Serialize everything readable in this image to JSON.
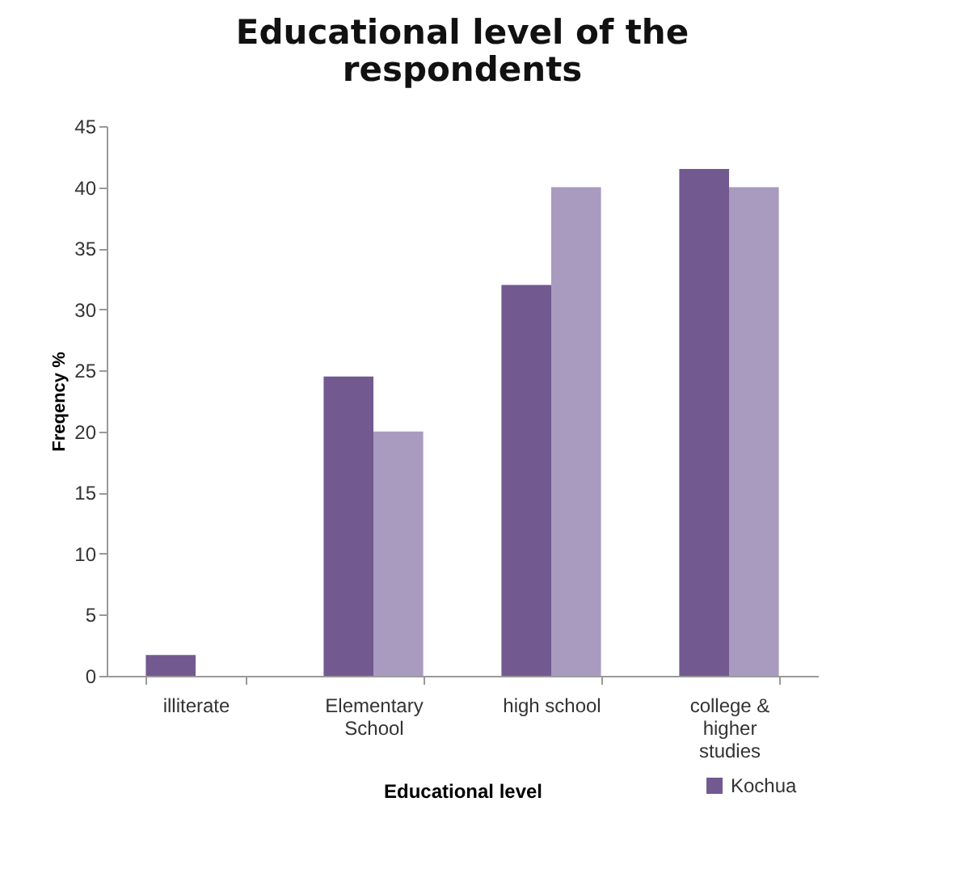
{
  "chart_data": {
    "type": "bar",
    "title": "Educational level of the respondents",
    "xlabel": "Educational level",
    "ylabel": "Freqency %",
    "categories": [
      "illiterate",
      "Elementary School",
      "high school",
      "college & higher studies"
    ],
    "series": [
      {
        "name": "Kochua",
        "color": "#725990",
        "values": [
          1.7,
          24.5,
          32,
          41.5
        ]
      },
      {
        "color": "#a99bbf",
        "values": [
          0,
          20,
          40,
          40
        ]
      }
    ],
    "ylim": [
      0,
      45
    ],
    "yticks": [
      0,
      5,
      10,
      15,
      20,
      25,
      30,
      35,
      40,
      45
    ],
    "grid": false,
    "legend": "bottom right"
  }
}
